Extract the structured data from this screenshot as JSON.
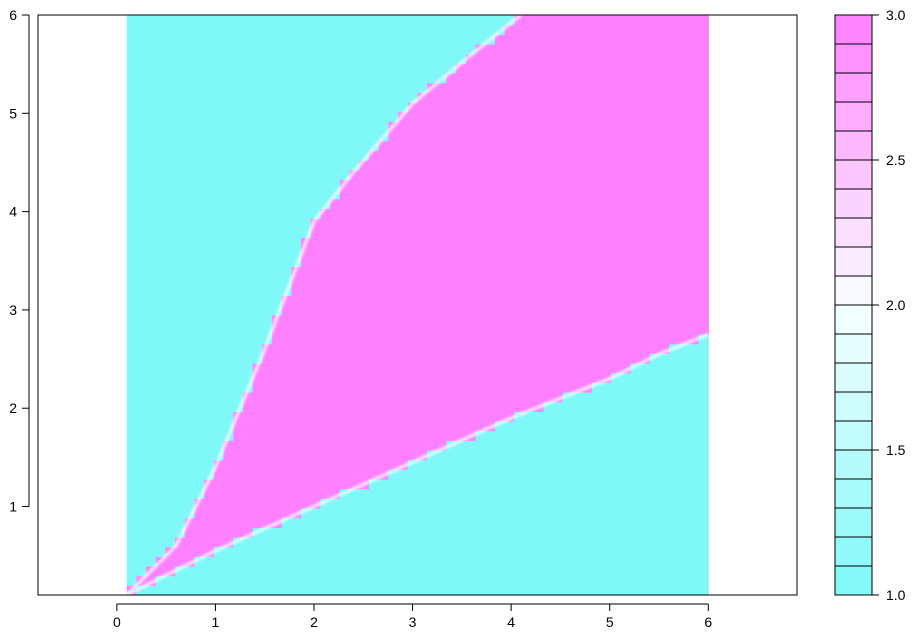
{
  "chart_data": {
    "type": "heatmap",
    "title": "",
    "xlabel": "",
    "ylabel": "",
    "xlim": [
      -0.8,
      6.9
    ],
    "ylim": [
      0.1,
      6.0
    ],
    "data_extent": {
      "x": [
        0.1,
        6.0
      ],
      "y": [
        0.1,
        6.0
      ]
    },
    "x_ticks": [
      "0",
      "1",
      "2",
      "3",
      "4",
      "5",
      "6"
    ],
    "y_ticks": [
      "1",
      "2",
      "3",
      "4",
      "5",
      "6"
    ],
    "grid": false,
    "legend": {
      "type": "colorbar",
      "placement": "right",
      "range": [
        1.0,
        3.0
      ],
      "levels": 20,
      "tick_labels": [
        "1.0",
        "1.5",
        "2.0",
        "2.5",
        "3.0"
      ],
      "low_color": "#7ff8f8",
      "mid_color": "#f8ffff",
      "high_color": "#ff80ff"
    },
    "regions": {
      "description_value_low": 1.0,
      "description_value_high": 3.0,
      "high_region_lower_boundary": [
        [
          0.1,
          0.1
        ],
        [
          0.6,
          0.35
        ],
        [
          1.0,
          0.55
        ],
        [
          2.0,
          1.0
        ],
        [
          3.0,
          1.45
        ],
        [
          4.0,
          1.9
        ],
        [
          4.5,
          2.1
        ],
        [
          5.0,
          2.3
        ],
        [
          5.5,
          2.55
        ],
        [
          6.0,
          2.75
        ]
      ],
      "high_region_upper_boundary": [
        [
          0.1,
          0.1
        ],
        [
          0.6,
          0.6
        ],
        [
          1.0,
          1.4
        ],
        [
          1.5,
          2.6
        ],
        [
          2.0,
          3.9
        ],
        [
          2.4,
          4.4
        ],
        [
          3.0,
          5.1
        ],
        [
          3.6,
          5.6
        ],
        [
          4.1,
          6.0
        ]
      ],
      "color_low": "#7ff8f8",
      "color_high": "#ff80ff"
    }
  }
}
